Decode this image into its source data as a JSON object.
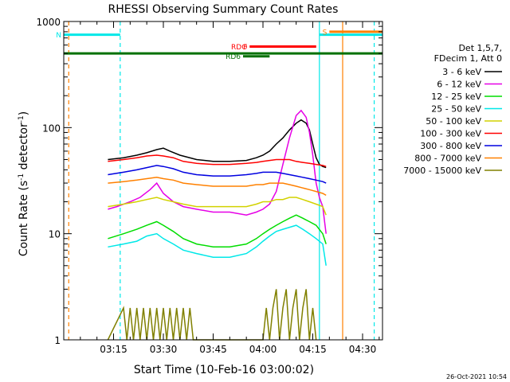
{
  "chart_data": {
    "type": "line",
    "title": "RHESSI Observing Summary Count Rates",
    "xlabel": "Start Time (10-Feb-16 03:00:02)",
    "ylabel_main": "Count Rate (s",
    "ylabel_sup1": "-1",
    "ylabel_mid": " detector",
    "ylabel_sup2": "-1",
    "ylabel_end": ")",
    "y_scale": "log",
    "ylim": [
      1,
      1000
    ],
    "xlim_minutes": [
      0,
      96
    ],
    "x_ticks": [
      {
        "minute": 15,
        "label": "03:15"
      },
      {
        "minute": 30,
        "label": "03:30"
      },
      {
        "minute": 45,
        "label": "03:45"
      },
      {
        "minute": 60,
        "label": "04:00"
      },
      {
        "minute": 75,
        "label": "04:15"
      },
      {
        "minute": 90,
        "label": "04:30"
      }
    ],
    "y_ticks": [
      {
        "value": 1,
        "label": "1"
      },
      {
        "value": 10,
        "label": "10"
      },
      {
        "value": 100,
        "label": "100"
      },
      {
        "value": 1000,
        "label": "1000"
      }
    ],
    "legend": {
      "placement": "right",
      "header": [
        "Det 1,5,7,",
        "FDecim 1, Att 0"
      ]
    },
    "series": [
      {
        "name": "3 - 6 keV",
        "color": "#000000",
        "values": [
          [
            13.3,
            50
          ],
          [
            18,
            52
          ],
          [
            22,
            55
          ],
          [
            25,
            58
          ],
          [
            28,
            62
          ],
          [
            30,
            64
          ],
          [
            32,
            60
          ],
          [
            35,
            55
          ],
          [
            40,
            50
          ],
          [
            45,
            48
          ],
          [
            50,
            48
          ],
          [
            55,
            49
          ],
          [
            58,
            52
          ],
          [
            60,
            55
          ],
          [
            62,
            60
          ],
          [
            64,
            70
          ],
          [
            66,
            80
          ],
          [
            68,
            95
          ],
          [
            70,
            110
          ],
          [
            71.5,
            118
          ],
          [
            73,
            110
          ],
          [
            74,
            95
          ],
          [
            75,
            70
          ],
          [
            76,
            52
          ],
          [
            77,
            45
          ],
          [
            78,
            43
          ],
          [
            79,
            42
          ]
        ]
      },
      {
        "name": "6 - 12 keV",
        "color": "#e600e6",
        "values": [
          [
            13.3,
            17
          ],
          [
            16,
            18
          ],
          [
            20,
            20
          ],
          [
            23,
            22
          ],
          [
            26,
            26
          ],
          [
            28,
            30
          ],
          [
            30,
            24
          ],
          [
            33,
            20
          ],
          [
            36,
            18
          ],
          [
            40,
            17
          ],
          [
            45,
            16
          ],
          [
            50,
            16
          ],
          [
            55,
            15
          ],
          [
            58,
            16
          ],
          [
            60,
            17
          ],
          [
            62,
            19
          ],
          [
            64,
            25
          ],
          [
            66,
            45
          ],
          [
            68,
            80
          ],
          [
            70,
            130
          ],
          [
            71.5,
            145
          ],
          [
            73,
            125
          ],
          [
            74,
            90
          ],
          [
            75,
            55
          ],
          [
            76,
            30
          ],
          [
            77,
            22
          ],
          [
            78,
            18
          ],
          [
            79,
            10
          ]
        ]
      },
      {
        "name": "12 - 25 keV",
        "color": "#00dd00",
        "values": [
          [
            13.3,
            9
          ],
          [
            18,
            10
          ],
          [
            22,
            11
          ],
          [
            25,
            12
          ],
          [
            28,
            13
          ],
          [
            30,
            12
          ],
          [
            33,
            10.5
          ],
          [
            36,
            9
          ],
          [
            40,
            8
          ],
          [
            45,
            7.5
          ],
          [
            50,
            7.5
          ],
          [
            55,
            8
          ],
          [
            58,
            9
          ],
          [
            60,
            10
          ],
          [
            62,
            11
          ],
          [
            64,
            12
          ],
          [
            66,
            13
          ],
          [
            68,
            14
          ],
          [
            70,
            15
          ],
          [
            72,
            14
          ],
          [
            74,
            13
          ],
          [
            76,
            12
          ],
          [
            78,
            10
          ],
          [
            79,
            8
          ]
        ]
      },
      {
        "name": "25 - 50 keV",
        "color": "#00e8e8",
        "values": [
          [
            13.3,
            7.5
          ],
          [
            18,
            8
          ],
          [
            22,
            8.5
          ],
          [
            25,
            9.5
          ],
          [
            28,
            10
          ],
          [
            30,
            9
          ],
          [
            33,
            8
          ],
          [
            36,
            7
          ],
          [
            40,
            6.5
          ],
          [
            45,
            6
          ],
          [
            50,
            6
          ],
          [
            55,
            6.5
          ],
          [
            58,
            7.5
          ],
          [
            60,
            8.5
          ],
          [
            62,
            9.5
          ],
          [
            64,
            10.5
          ],
          [
            66,
            11
          ],
          [
            68,
            11.5
          ],
          [
            70,
            12
          ],
          [
            72,
            11
          ],
          [
            74,
            10
          ],
          [
            76,
            9
          ],
          [
            78,
            8
          ],
          [
            79,
            5
          ]
        ]
      },
      {
        "name": "50 - 100 keV",
        "color": "#d2d200",
        "values": [
          [
            13.3,
            18
          ],
          [
            18,
            19
          ],
          [
            22,
            20
          ],
          [
            25,
            21
          ],
          [
            28,
            22
          ],
          [
            30,
            21
          ],
          [
            33,
            20
          ],
          [
            36,
            19
          ],
          [
            40,
            18
          ],
          [
            45,
            18
          ],
          [
            50,
            18
          ],
          [
            55,
            18
          ],
          [
            58,
            19
          ],
          [
            60,
            20
          ],
          [
            62,
            20
          ],
          [
            64,
            21
          ],
          [
            66,
            21
          ],
          [
            68,
            22
          ],
          [
            70,
            22
          ],
          [
            72,
            21
          ],
          [
            74,
            20
          ],
          [
            76,
            19
          ],
          [
            78,
            18
          ],
          [
            79,
            15
          ]
        ]
      },
      {
        "name": "100 - 300 keV",
        "color": "#ff0000",
        "values": [
          [
            13.3,
            48
          ],
          [
            18,
            50
          ],
          [
            22,
            52
          ],
          [
            25,
            54
          ],
          [
            28,
            55
          ],
          [
            30,
            54
          ],
          [
            33,
            52
          ],
          [
            36,
            48
          ],
          [
            40,
            46
          ],
          [
            45,
            45
          ],
          [
            50,
            45
          ],
          [
            55,
            46
          ],
          [
            58,
            47
          ],
          [
            60,
            48
          ],
          [
            62,
            49
          ],
          [
            64,
            50
          ],
          [
            66,
            50
          ],
          [
            68,
            50
          ],
          [
            70,
            48
          ],
          [
            72,
            47
          ],
          [
            74,
            46
          ],
          [
            76,
            45
          ],
          [
            78,
            44
          ],
          [
            79,
            43
          ]
        ]
      },
      {
        "name": "300 - 800 keV",
        "color": "#0000e0",
        "values": [
          [
            13.3,
            36
          ],
          [
            18,
            38
          ],
          [
            22,
            40
          ],
          [
            25,
            42
          ],
          [
            28,
            44
          ],
          [
            30,
            43
          ],
          [
            33,
            41
          ],
          [
            36,
            38
          ],
          [
            40,
            36
          ],
          [
            45,
            35
          ],
          [
            50,
            35
          ],
          [
            55,
            36
          ],
          [
            58,
            37
          ],
          [
            60,
            38
          ],
          [
            62,
            38
          ],
          [
            64,
            38
          ],
          [
            66,
            37
          ],
          [
            68,
            36
          ],
          [
            70,
            35
          ],
          [
            72,
            34
          ],
          [
            74,
            33
          ],
          [
            76,
            32
          ],
          [
            78,
            31
          ],
          [
            79,
            30
          ]
        ]
      },
      {
        "name": "800 - 7000 keV",
        "color": "#ff8000",
        "values": [
          [
            13.3,
            30
          ],
          [
            18,
            31
          ],
          [
            22,
            32
          ],
          [
            25,
            33
          ],
          [
            28,
            34
          ],
          [
            30,
            33
          ],
          [
            33,
            32
          ],
          [
            36,
            30
          ],
          [
            40,
            29
          ],
          [
            45,
            28
          ],
          [
            50,
            28
          ],
          [
            55,
            28
          ],
          [
            58,
            29
          ],
          [
            60,
            29
          ],
          [
            62,
            30
          ],
          [
            64,
            30
          ],
          [
            66,
            30
          ],
          [
            68,
            29
          ],
          [
            70,
            28
          ],
          [
            72,
            27
          ],
          [
            74,
            26
          ],
          [
            76,
            25
          ],
          [
            78,
            24
          ],
          [
            79,
            23
          ]
        ]
      },
      {
        "name": "7000 - 15000 keV",
        "color": "#808000",
        "values": [
          [
            13.3,
            1
          ],
          [
            18,
            2
          ],
          [
            19,
            1
          ],
          [
            20,
            2
          ],
          [
            21,
            1
          ],
          [
            22,
            2
          ],
          [
            23,
            1
          ],
          [
            24,
            2
          ],
          [
            25,
            1
          ],
          [
            26,
            2
          ],
          [
            27,
            1
          ],
          [
            28,
            2
          ],
          [
            29,
            1
          ],
          [
            30,
            2
          ],
          [
            31,
            1
          ],
          [
            32,
            2
          ],
          [
            33,
            1
          ],
          [
            34,
            2
          ],
          [
            35,
            1
          ],
          [
            36,
            2
          ],
          [
            37,
            1
          ],
          [
            38,
            2
          ],
          [
            39,
            1
          ],
          [
            40,
            1
          ],
          [
            60,
            1
          ],
          [
            61,
            2
          ],
          [
            62,
            1
          ],
          [
            63,
            2
          ],
          [
            64,
            3
          ],
          [
            65,
            1
          ],
          [
            66,
            2
          ],
          [
            67,
            3
          ],
          [
            68,
            1
          ],
          [
            69,
            2
          ],
          [
            70,
            3
          ],
          [
            71,
            1
          ],
          [
            72,
            2
          ],
          [
            73,
            3
          ],
          [
            74,
            1
          ],
          [
            75,
            2
          ],
          [
            76,
            1
          ]
        ]
      }
    ],
    "state_bars": [
      {
        "label": "N",
        "color": "#00e8e8",
        "segments": [
          [
            0,
            17
          ],
          [
            77,
            96
          ]
        ],
        "level": 750
      },
      {
        "label": "S",
        "color": "#ff8000",
        "segments": [
          [
            80,
            96
          ]
        ],
        "level": 800
      },
      {
        "label": "F",
        "color": "#ff0000",
        "segments": [
          [
            56,
            76
          ]
        ],
        "level": 580
      },
      {
        "label": "RDO",
        "color": "#ff0000",
        "segments": [
          [
            56,
            76
          ]
        ],
        "level": 580
      },
      {
        "label": "RD6",
        "color": "#007000",
        "segments": [
          [
            54,
            62
          ]
        ],
        "level": 470
      },
      {
        "label": "",
        "color": "#007000",
        "segments": [
          [
            0,
            96
          ]
        ],
        "level": 500
      }
    ],
    "vertical_markers": [
      {
        "minute": 1.5,
        "color": "#ff8000",
        "style": "dashed"
      },
      {
        "minute": 17,
        "color": "#00e8e8",
        "style": "dashed"
      },
      {
        "minute": 77,
        "color": "#00e8e8",
        "style": "solid"
      },
      {
        "minute": 84,
        "color": "#ff8000",
        "style": "solid"
      },
      {
        "minute": 93.5,
        "color": "#00e8e8",
        "style": "dashed"
      }
    ],
    "grid": false,
    "timestamp": "26-Oct-2021 10:54"
  }
}
